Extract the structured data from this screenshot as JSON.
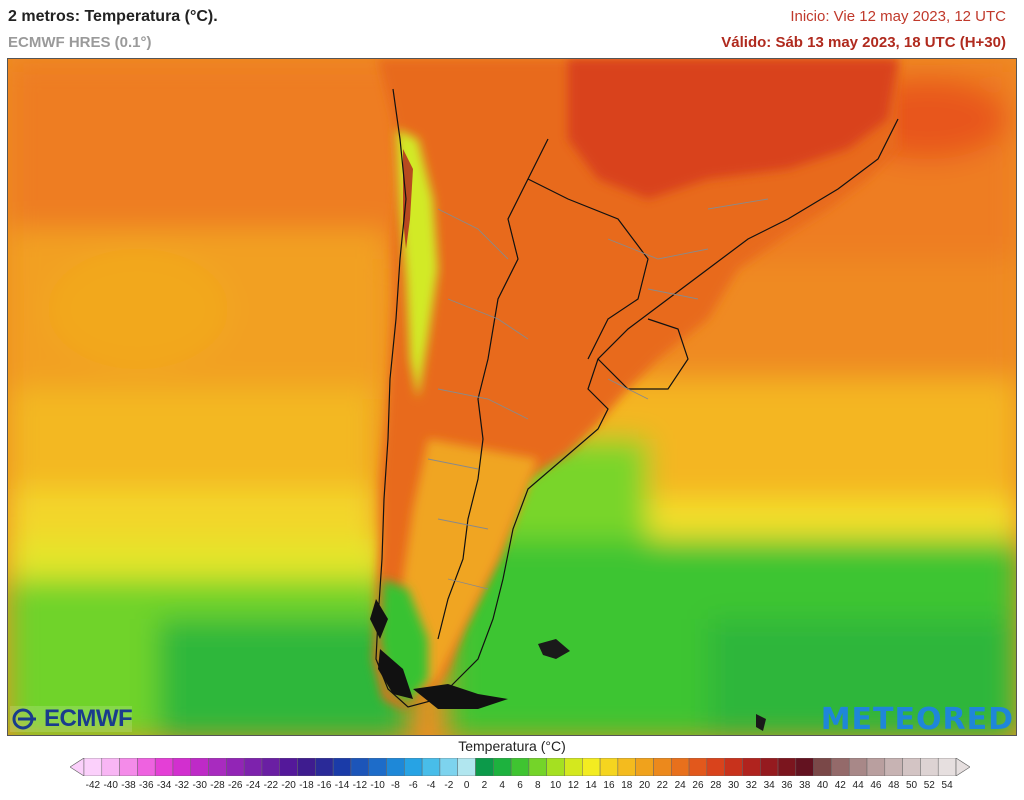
{
  "header": {
    "title": "2 metros: Temperatura (°C).",
    "model": "ECMWF HRES (0.1°)",
    "init": "Inicio: Vie 12 may 2023, 12 UTC",
    "valid": "Válido: Sáb 13 may 2023, 18 UTC (H+30)"
  },
  "logos": {
    "left": "ECMWF",
    "right": "METEORED"
  },
  "legend": {
    "title": "Temperatura (°C)",
    "ticks": [
      "-42",
      "-40",
      "-38",
      "-36",
      "-34",
      "-32",
      "-30",
      "-28",
      "-26",
      "-24",
      "-22",
      "-20",
      "-18",
      "-16",
      "-14",
      "-12",
      "-10",
      "-8",
      "-6",
      "-4",
      "-2",
      "0",
      "2",
      "4",
      "6",
      "8",
      "10",
      "12",
      "14",
      "16",
      "18",
      "20",
      "22",
      "24",
      "26",
      "28",
      "30",
      "32",
      "34",
      "36",
      "38",
      "40",
      "42",
      "44",
      "46",
      "48",
      "50",
      "52",
      "54"
    ],
    "colors": [
      "#fbd0fb",
      "#f8b6f4",
      "#f48be9",
      "#ee62e0",
      "#e43fd6",
      "#d22fcf",
      "#be2ac7",
      "#a82bbf",
      "#9225b6",
      "#7d22ad",
      "#6a1fa3",
      "#54189a",
      "#3e1c8f",
      "#2a2a98",
      "#1a3ba8",
      "#1c55b9",
      "#1d6cc9",
      "#1e88d8",
      "#27a3e4",
      "#48bde9",
      "#7dd3ee",
      "#b1e6ef",
      "#0c9a4a",
      "#1db23e",
      "#3fc431",
      "#74d429",
      "#a5e021",
      "#d4e81e",
      "#f3ec21",
      "#f5d51f",
      "#f4bb1e",
      "#f0a21c",
      "#ec891c",
      "#e8701c",
      "#e2581c",
      "#d9431c",
      "#c8321c",
      "#b0231e",
      "#951a1f",
      "#7b151e",
      "#631220",
      "#7a4848",
      "#946a6a",
      "#a88888",
      "#b99f9f",
      "#c7b3b3",
      "#d3c4c4",
      "#ddd3d3",
      "#e6dfdf"
    ]
  }
}
